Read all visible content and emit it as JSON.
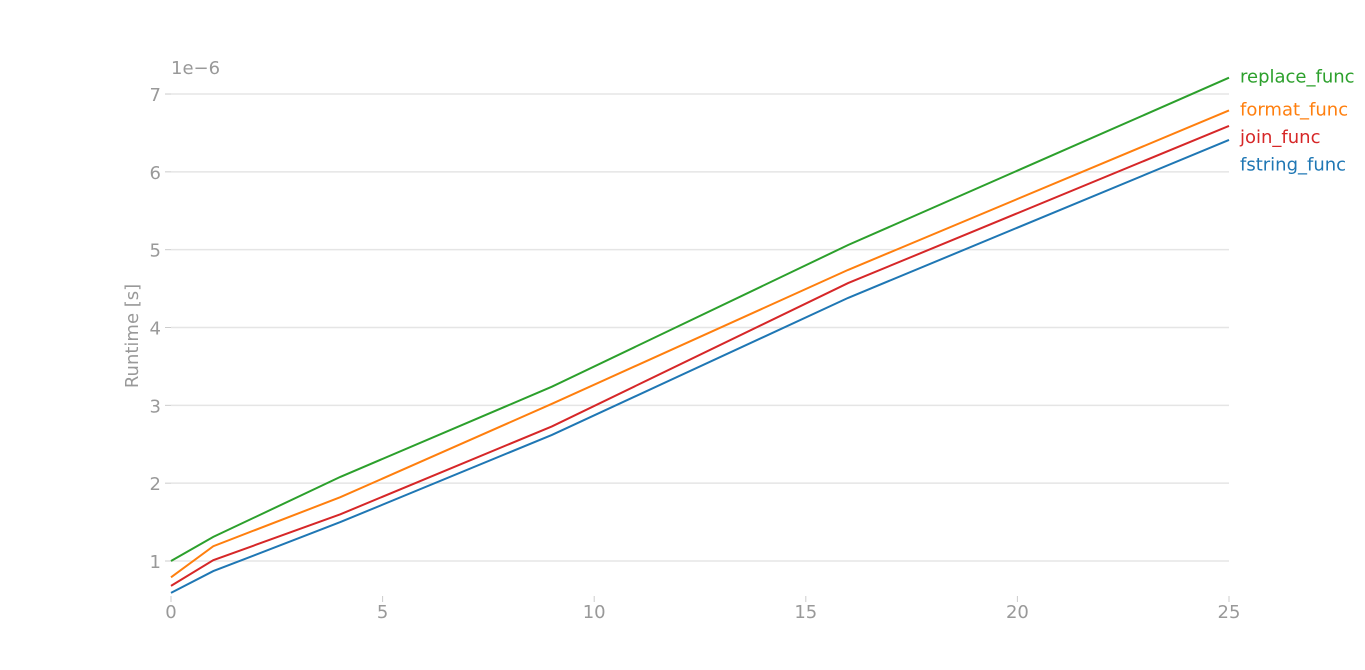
{
  "chart_data": {
    "type": "line",
    "title": "",
    "xlabel": "",
    "ylabel": "Runtime [s]",
    "y_scale_label": "1e−6",
    "xlim": [
      0,
      25
    ],
    "ylim": [
      0.59,
      7.21
    ],
    "x_ticks": [
      "0",
      "5",
      "10",
      "15",
      "20",
      "25"
    ],
    "y_ticks": [
      "1",
      "2",
      "3",
      "4",
      "5",
      "6",
      "7"
    ],
    "grid": "horizontal",
    "legend": "right, labels at line ends",
    "x": [
      0,
      1,
      4,
      9,
      16,
      25
    ],
    "series": [
      {
        "name": "replace_func",
        "color": "#2ca02c",
        "values": [
          1.0,
          1.31,
          2.08,
          3.24,
          5.06,
          7.21
        ]
      },
      {
        "name": "format_func",
        "color": "#ff7f0e",
        "values": [
          0.79,
          1.19,
          1.82,
          3.02,
          4.74,
          6.79
        ]
      },
      {
        "name": "join_func",
        "color": "#d62728",
        "values": [
          0.68,
          1.01,
          1.6,
          2.73,
          4.57,
          6.59
        ]
      },
      {
        "name": "fstring_func",
        "color": "#1f77b4",
        "values": [
          0.59,
          0.87,
          1.5,
          2.62,
          4.38,
          6.41
        ]
      }
    ]
  }
}
